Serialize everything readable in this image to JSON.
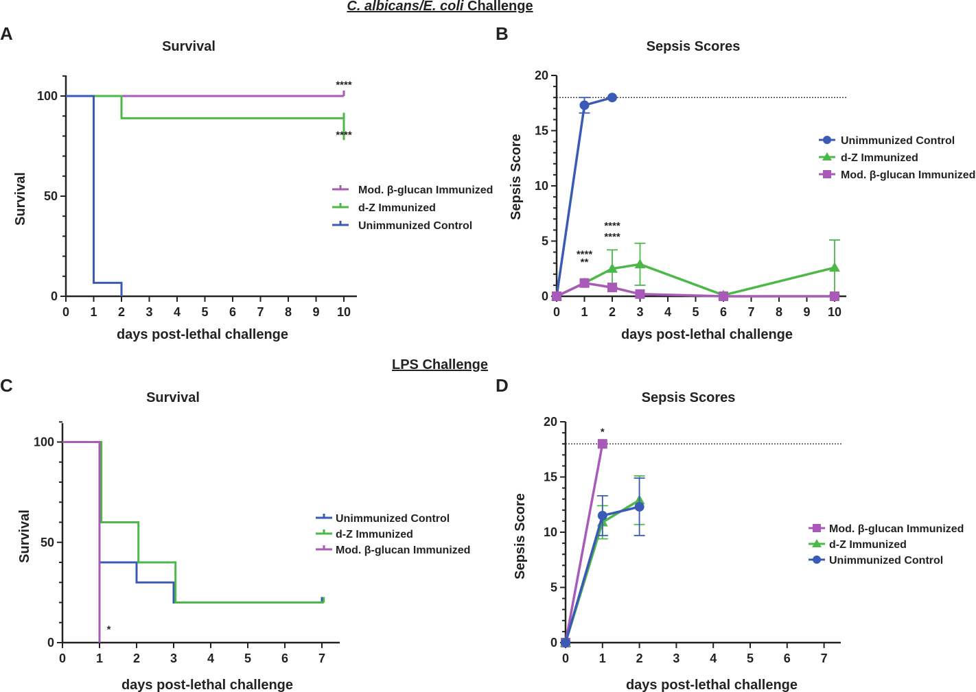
{
  "figure": {
    "section_top": {
      "italic": "C. albicans/E. coli",
      "rest": " Challenge"
    },
    "section_bottom": "LPS Challenge"
  },
  "colors": {
    "purple": "#a959b8",
    "green": "#4cb848",
    "blue": "#3a5bb5",
    "axis": "#222222",
    "threshold": "#333333"
  },
  "chart_data": [
    {
      "id": "A",
      "panel_label": "A",
      "type": "line",
      "step": true,
      "title": "Survival",
      "xlabel": "days post-lethal challenge",
      "ylabel": "Survival",
      "x_ticks": [
        "0",
        "1",
        "2",
        "3",
        "4",
        "5",
        "6",
        "7",
        "8",
        "9",
        "10"
      ],
      "y_ticks": [
        "0",
        "50",
        "100"
      ],
      "ylim": [
        0,
        110
      ],
      "series": [
        {
          "name": "Mod. β-glucan Immunized",
          "color_key": "purple",
          "x": [
            0,
            10
          ],
          "y": [
            100,
            100
          ]
        },
        {
          "name": "d-Z Immunized",
          "color_key": "green",
          "x": [
            0,
            2,
            10
          ],
          "y": [
            100,
            88.9,
            88.9
          ],
          "final_drop_to": 78
        },
        {
          "name": "Unimmunized Control",
          "color_key": "blue",
          "x": [
            0,
            1,
            2
          ],
          "y": [
            100,
            6.7,
            0
          ]
        }
      ],
      "legend": [
        {
          "label": "Mod. β-glucan Immunized",
          "color_key": "purple"
        },
        {
          "label": "d-Z Immunized",
          "color_key": "green"
        },
        {
          "label": "Unimmunized Control",
          "color_key": "blue"
        }
      ],
      "annotations": [
        {
          "text": "****",
          "x": 10,
          "y": 104
        },
        {
          "text": "****",
          "x": 10,
          "y": 79
        }
      ]
    },
    {
      "id": "B",
      "panel_label": "B",
      "type": "line",
      "title": "Sepsis Scores",
      "xlabel": "days post-lethal challenge",
      "ylabel": "Sepsis Score",
      "x_ticks": [
        "0",
        "1",
        "2",
        "3",
        "4",
        "5",
        "6",
        "7",
        "8",
        "9",
        "10"
      ],
      "y_ticks": [
        "0",
        "5",
        "10",
        "15",
        "20"
      ],
      "ylim": [
        0,
        20
      ],
      "threshold": 18,
      "series": [
        {
          "name": "Unimmunized Control",
          "color_key": "blue",
          "marker": "circle",
          "x": [
            0,
            1,
            2
          ],
          "y": [
            0,
            17.3,
            18
          ],
          "err": [
            0,
            0.7,
            0
          ]
        },
        {
          "name": "d-Z Immunized",
          "color_key": "green",
          "marker": "triangle",
          "x": [
            0,
            1,
            2,
            3,
            6,
            10
          ],
          "y": [
            0,
            1.2,
            2.5,
            2.9,
            0.1,
            2.6
          ],
          "err": [
            0,
            0,
            1.7,
            1.9,
            0,
            2.5
          ]
        },
        {
          "name": "Mod. β-glucan Immunized",
          "color_key": "purple",
          "marker": "square",
          "x": [
            0,
            1,
            2,
            3,
            6,
            10
          ],
          "y": [
            0,
            1.2,
            0.8,
            0.2,
            0,
            0
          ],
          "err": [
            0,
            0,
            0,
            0,
            0,
            0
          ]
        }
      ],
      "legend": [
        {
          "label": "Unimmunized Control",
          "color_key": "blue",
          "marker": "circle"
        },
        {
          "label": "d-Z Immunized",
          "color_key": "green",
          "marker": "triangle"
        },
        {
          "label": "Mod. β-glucan Immunized",
          "color_key": "purple",
          "marker": "square"
        }
      ],
      "annotations": [
        {
          "text": "****",
          "x": 1,
          "y": 3.5
        },
        {
          "text": "**",
          "x": 1,
          "y": 2.8
        },
        {
          "text": "****",
          "x": 2,
          "y": 6.1
        },
        {
          "text": "****",
          "x": 2,
          "y": 5.1
        }
      ]
    },
    {
      "id": "C",
      "panel_label": "C",
      "type": "line",
      "step": true,
      "title": "Survival",
      "xlabel": "days post-lethal challenge",
      "ylabel": "Survival",
      "x_ticks": [
        "0",
        "1",
        "2",
        "3",
        "4",
        "5",
        "6",
        "7"
      ],
      "y_ticks": [
        "0",
        "50",
        "100"
      ],
      "ylim": [
        0,
        110
      ],
      "series": [
        {
          "name": "Unimmunized Control",
          "color_key": "blue",
          "x": [
            0,
            1,
            2,
            3,
            7
          ],
          "y": [
            100,
            40,
            30,
            20,
            20
          ]
        },
        {
          "name": "d-Z Immunized",
          "color_key": "green",
          "x": [
            0,
            1.05,
            2.05,
            3.05,
            7.05
          ],
          "y": [
            100,
            60,
            40,
            20,
            20
          ]
        },
        {
          "name": "Mod. β-glucan Immunized",
          "color_key": "purple",
          "x": [
            0,
            1
          ],
          "y": [
            100,
            0
          ]
        }
      ],
      "legend": [
        {
          "label": "Unimmunized Control",
          "color_key": "blue"
        },
        {
          "label": "d-Z Immunized",
          "color_key": "green"
        },
        {
          "label": "Mod. β-glucan Immunized",
          "color_key": "purple"
        }
      ],
      "annotations": [
        {
          "text": "*",
          "x": 1.25,
          "y": 5
        }
      ]
    },
    {
      "id": "D",
      "panel_label": "D",
      "type": "line",
      "title": "Sepsis Scores",
      "xlabel": "days post-lethal challenge",
      "ylabel": "Sepsis Score",
      "x_ticks": [
        "0",
        "1",
        "2",
        "3",
        "4",
        "5",
        "6",
        "7"
      ],
      "y_ticks": [
        "0",
        "5",
        "10",
        "15",
        "20"
      ],
      "ylim": [
        0,
        20
      ],
      "threshold": 18,
      "series": [
        {
          "name": "Mod. β-glucan Immunized",
          "color_key": "purple",
          "marker": "square",
          "x": [
            0,
            1
          ],
          "y": [
            0,
            18
          ],
          "err": [
            0,
            0
          ]
        },
        {
          "name": "d-Z Immunized",
          "color_key": "green",
          "marker": "triangle",
          "x": [
            0,
            1,
            2
          ],
          "y": [
            0,
            10.9,
            12.9
          ],
          "err": [
            0,
            1.5,
            2.2
          ]
        },
        {
          "name": "Unimmunized Control",
          "color_key": "blue",
          "marker": "circle",
          "x": [
            0,
            1,
            2
          ],
          "y": [
            0,
            11.5,
            12.3
          ],
          "err": [
            0,
            1.8,
            2.6
          ]
        }
      ],
      "legend": [
        {
          "label": "Mod. β-glucan Immunized",
          "color_key": "purple",
          "marker": "square"
        },
        {
          "label": "d-Z Immunized",
          "color_key": "green",
          "marker": "triangle"
        },
        {
          "label": "Unimmunized Control",
          "color_key": "blue",
          "marker": "circle"
        }
      ],
      "annotations": [
        {
          "text": "*",
          "x": 1,
          "y": 18.8
        }
      ]
    }
  ]
}
